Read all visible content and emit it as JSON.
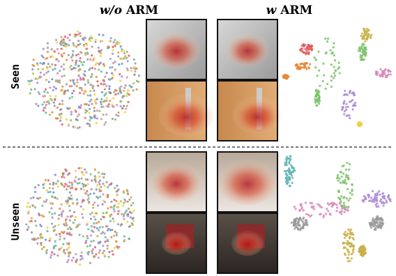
{
  "columns": [
    {
      "prefix": "w/o",
      "label": "ARM"
    },
    {
      "prefix": "w",
      "label": "ARM"
    }
  ],
  "rows": [
    "Seen",
    "Unseen"
  ]
}
